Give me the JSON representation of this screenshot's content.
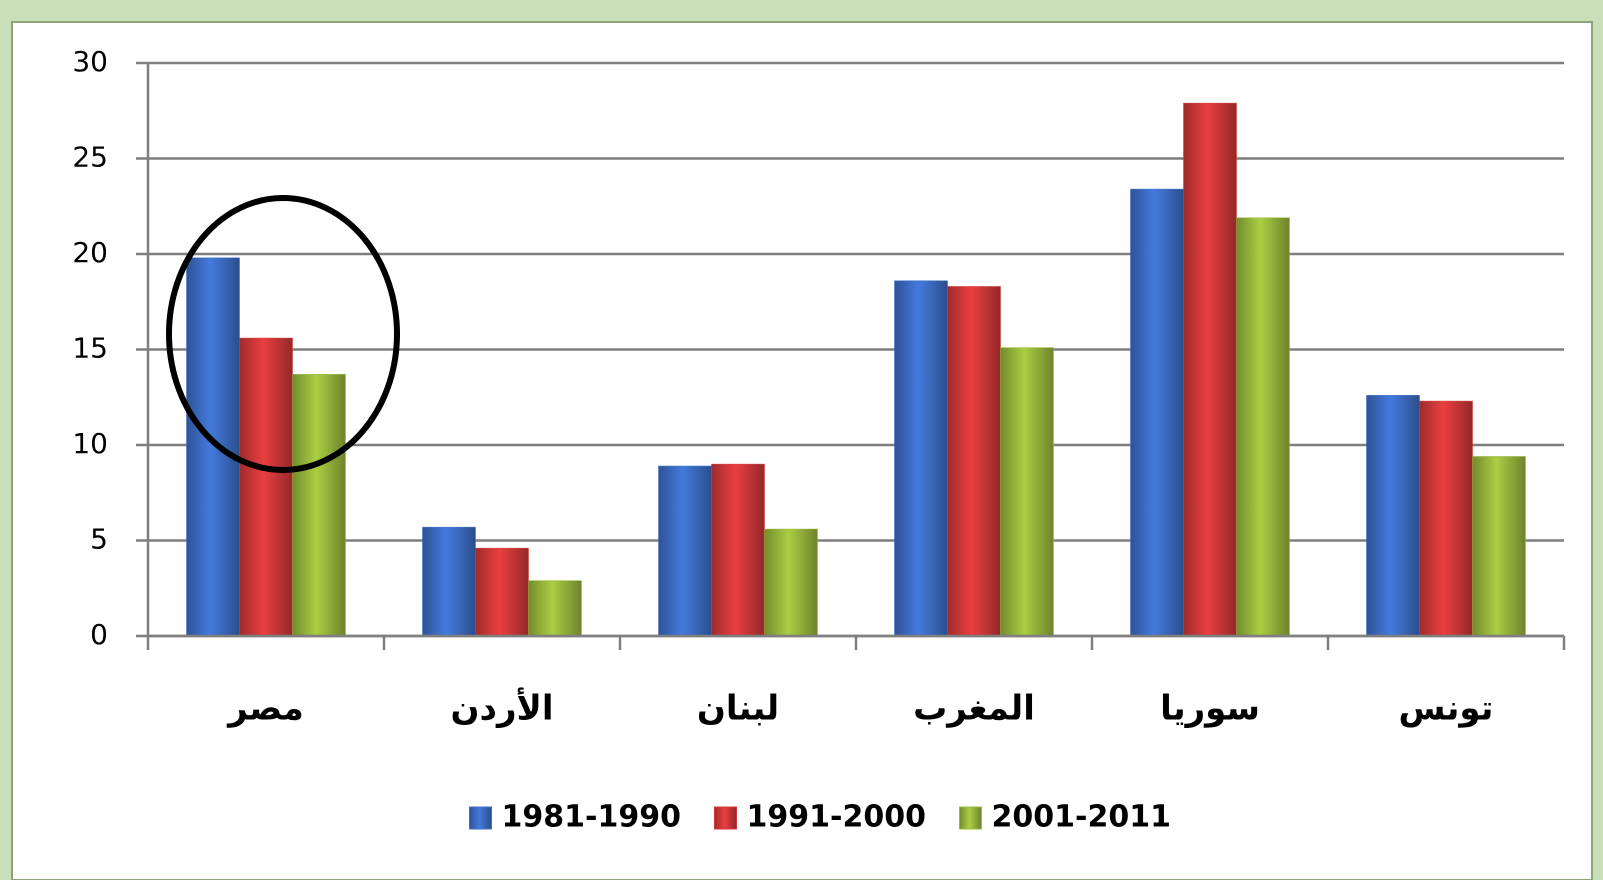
{
  "chart_data": {
    "type": "bar",
    "categories": [
      "مصر",
      "الأردن",
      "لبنان",
      "المغرب",
      "سوريا",
      "تونس"
    ],
    "series": [
      {
        "name": "1981-1990",
        "color": "#3e6fc9",
        "values": [
          19.8,
          5.7,
          8.9,
          18.6,
          23.4,
          12.6
        ]
      },
      {
        "name": "1991-2000",
        "color": "#d4393a",
        "values": [
          15.6,
          4.6,
          9.0,
          18.3,
          27.9,
          12.3
        ]
      },
      {
        "name": "2001-2011",
        "color": "#9bbb3d",
        "values": [
          13.7,
          2.9,
          5.6,
          15.1,
          21.9,
          9.4
        ]
      }
    ],
    "ylim": [
      0,
      30
    ],
    "yticks": [
      0,
      5,
      10,
      15,
      20,
      25,
      30
    ],
    "grid": true,
    "legend": "bottom"
  }
}
